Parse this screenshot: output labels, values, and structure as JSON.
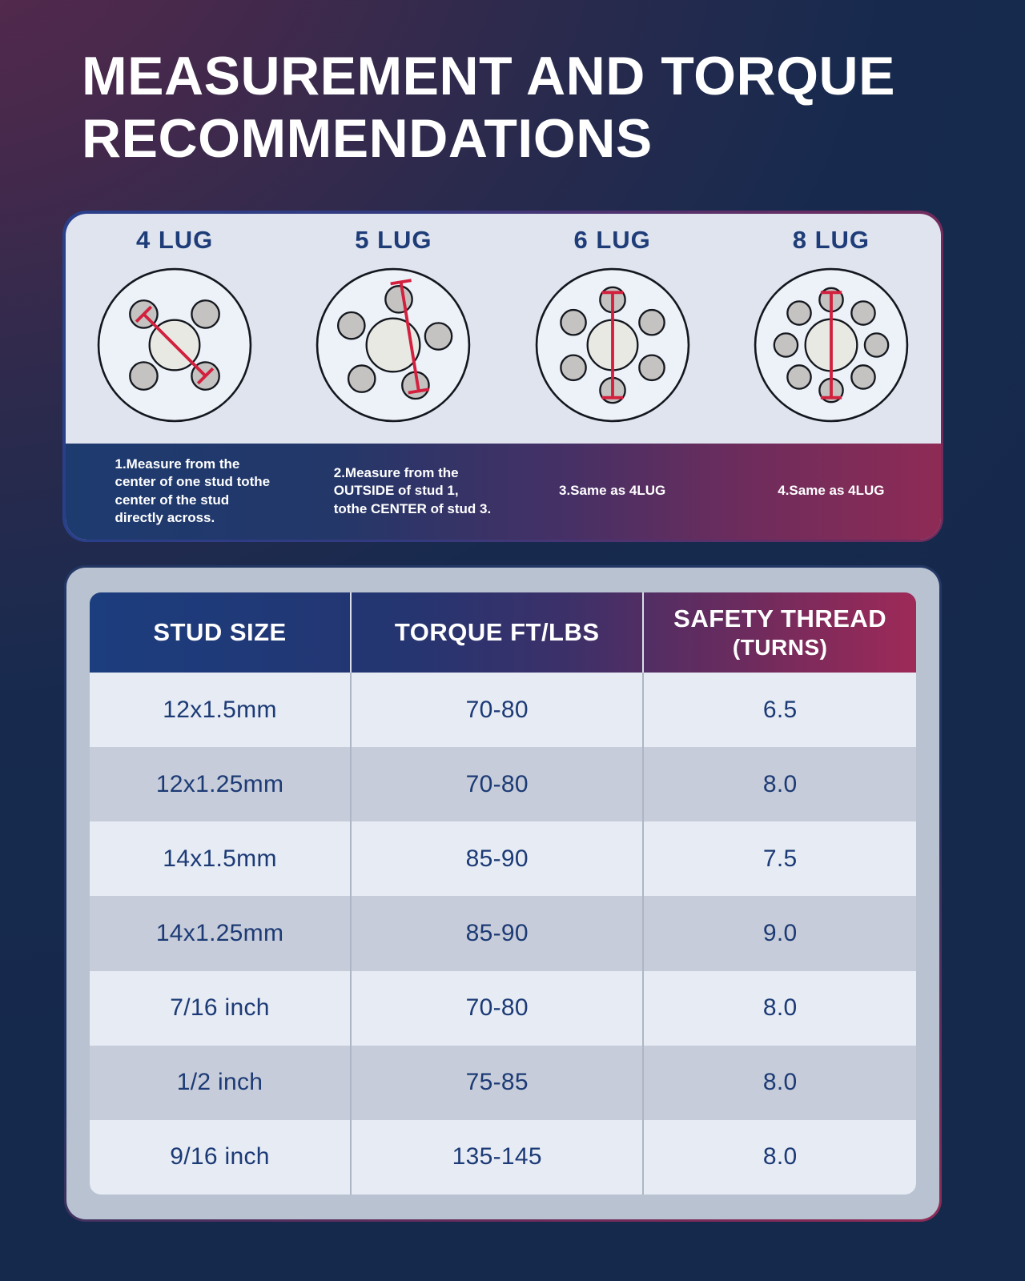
{
  "page": {
    "title": "MEASUREMENT AND TORQUE RECOMMENDATIONS",
    "colors": {
      "background_top_left_purple": "#5D2A4F",
      "background_navy": "#16294D",
      "panel_background": "#DFE4EF",
      "accent_red": "#D2203E",
      "lug_label_blue": "#1E3C78",
      "caption_band_left": "#1E3B70",
      "caption_band_right": "#8E2B55",
      "header_left": "#1C3D7E",
      "header_right": "#9E2A58",
      "table_card_background": "#B8C2D1",
      "row_light": "#E6EBF4",
      "row_dark": "#C6CCD9",
      "cell_text_blue": "#1C3A75",
      "wheel_face": "#EDF1F8",
      "wheel_hub": "#E9E9E4",
      "lug_gray": "#C4C3C1",
      "outline_black": "#14171E"
    }
  },
  "diagrams": {
    "figures": [
      {
        "label": "4 LUG",
        "lugs": 4,
        "icon": "wheel-hub-4-lug-icon",
        "measure_line": "center-of-stud-to-center-of-stud-across"
      },
      {
        "label": "5 LUG",
        "lugs": 5,
        "icon": "wheel-hub-5-lug-icon",
        "measure_line": "outside-of-stud-1-to-center-of-stud-3"
      },
      {
        "label": "6 LUG",
        "lugs": 6,
        "icon": "wheel-hub-6-lug-icon",
        "measure_line": "center-of-stud-to-center-of-stud-across"
      },
      {
        "label": "8 LUG",
        "lugs": 8,
        "icon": "wheel-hub-8-lug-icon",
        "measure_line": "center-of-stud-to-center-of-stud-across"
      }
    ],
    "captions": [
      "1.Measure from the center of one stud tothe center of the stud directly across.",
      "2.Measure from the OUTSIDE of stud 1, tothe CENTER of stud 3.",
      "3.Same as 4LUG",
      "4.Same as 4LUG"
    ]
  },
  "table": {
    "headers": [
      {
        "label": "STUD SIZE",
        "sublabel": ""
      },
      {
        "label": "TORQUE FT/LBS",
        "sublabel": ""
      },
      {
        "label": "SAFETY THREAD",
        "sublabel": "(TURNS)"
      }
    ],
    "rows": [
      {
        "stud_size": "12x1.5mm",
        "torque_ft_lbs": "70-80",
        "safety_thread_turns": "6.5"
      },
      {
        "stud_size": "12x1.25mm",
        "torque_ft_lbs": "70-80",
        "safety_thread_turns": "8.0"
      },
      {
        "stud_size": "14x1.5mm",
        "torque_ft_lbs": "85-90",
        "safety_thread_turns": "7.5"
      },
      {
        "stud_size": "14x1.25mm",
        "torque_ft_lbs": "85-90",
        "safety_thread_turns": "9.0"
      },
      {
        "stud_size": "7/16 inch",
        "torque_ft_lbs": "70-80",
        "safety_thread_turns": "8.0"
      },
      {
        "stud_size": "1/2 inch",
        "torque_ft_lbs": "75-85",
        "safety_thread_turns": "8.0"
      },
      {
        "stud_size": "9/16 inch",
        "torque_ft_lbs": "135-145",
        "safety_thread_turns": "8.0"
      }
    ]
  }
}
